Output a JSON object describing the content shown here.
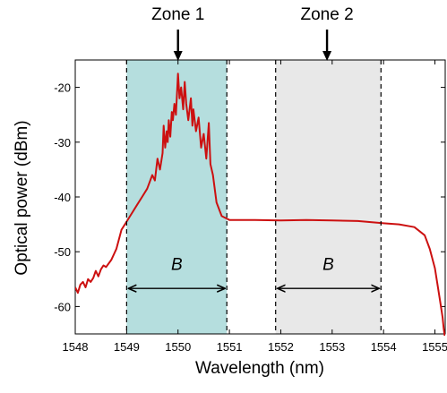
{
  "chart_data": {
    "type": "line",
    "xlabel": "Wavelength (nm)",
    "ylabel": "Optical power (dBm)",
    "xlim": [
      1548,
      1555.2
    ],
    "ylim": [
      -65,
      -15
    ],
    "x_ticks": [
      "1548",
      "1549",
      "1550",
      "1551",
      "1552",
      "1553",
      "1554",
      "1555"
    ],
    "y_ticks": [
      "-20",
      "-30",
      "-40",
      "-50",
      "-60"
    ],
    "grid": false,
    "line_color": "#cc1010",
    "zones": [
      {
        "label": "Zone 1",
        "x_start": 1549.0,
        "x_end": 1550.95,
        "arrow_at": 1550.0,
        "fill": "#b5dede",
        "band_label": "B"
      },
      {
        "label": "Zone 2",
        "x_start": 1551.9,
        "x_end": 1553.95,
        "arrow_at": 1552.9,
        "fill": "#e8e8e8",
        "band_label": "B"
      }
    ],
    "series": [
      {
        "x": [
          1548.0,
          1548.05,
          1548.1,
          1548.15,
          1548.2,
          1548.25,
          1548.3,
          1548.35,
          1548.4,
          1548.45,
          1548.5,
          1548.55,
          1548.6,
          1548.7,
          1548.8,
          1548.9,
          1549.0,
          1549.1,
          1549.2,
          1549.3,
          1549.4,
          1549.5,
          1549.55,
          1549.6,
          1549.65,
          1549.7,
          1549.72,
          1549.75,
          1549.78,
          1549.8,
          1549.82,
          1549.85,
          1549.88,
          1549.9,
          1549.93,
          1549.96,
          1550.0,
          1550.03,
          1550.06,
          1550.1,
          1550.13,
          1550.16,
          1550.2,
          1550.25,
          1550.28,
          1550.3,
          1550.35,
          1550.4,
          1550.45,
          1550.5,
          1550.55,
          1550.6,
          1550.63,
          1550.68,
          1550.75,
          1550.85,
          1551.0,
          1551.2,
          1551.5,
          1552.0,
          1552.5,
          1553.0,
          1553.5,
          1554.0,
          1554.3,
          1554.6,
          1554.8,
          1554.9,
          1555.0,
          1555.05,
          1555.1,
          1555.15,
          1555.17,
          1555.2
        ],
        "y": [
          -56.5,
          -57.5,
          -56,
          -55.5,
          -56.5,
          -55,
          -55.5,
          -54.8,
          -53.5,
          -54.5,
          -53.2,
          -52.5,
          -52.8,
          -51.5,
          -49.5,
          -46,
          -44.5,
          -43,
          -41.5,
          -40,
          -38.5,
          -36,
          -37,
          -33,
          -35,
          -32,
          -27,
          -31,
          -28,
          -30,
          -26,
          -29,
          -24.5,
          -26,
          -23,
          -25,
          -17.5,
          -22,
          -20,
          -24,
          -19,
          -23,
          -26,
          -22,
          -27,
          -24,
          -28,
          -25.5,
          -31,
          -28.5,
          -33,
          -26.5,
          -34,
          -36,
          -41,
          -43.5,
          -44.2,
          -44.2,
          -44.2,
          -44.3,
          -44.2,
          -44.3,
          -44.4,
          -44.8,
          -45.0,
          -45.5,
          -47.0,
          -49.5,
          -53.0,
          -56.0,
          -59.0,
          -62.0,
          -64.0,
          -66.0
        ]
      }
    ]
  }
}
